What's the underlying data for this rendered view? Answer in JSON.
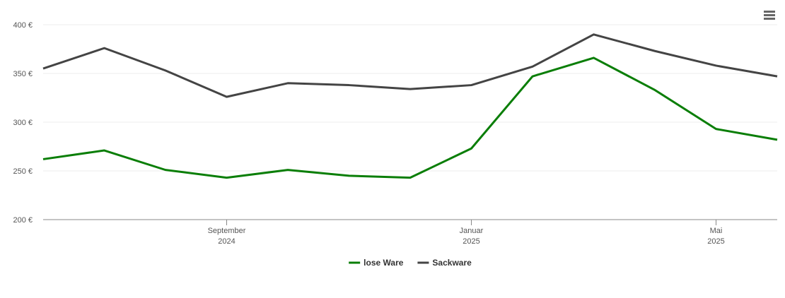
{
  "chart_data": {
    "type": "line",
    "x": [
      "2024-06",
      "2024-07",
      "2024-08",
      "2024-09",
      "2024-10",
      "2024-11",
      "2024-12",
      "2025-01",
      "2025-02",
      "2025-03",
      "2025-04",
      "2025-05",
      "2025-06"
    ],
    "series": [
      {
        "name": "lose Ware",
        "color": "#0a7e07",
        "values": [
          262,
          271,
          251,
          243,
          251,
          245,
          243,
          273,
          347,
          366,
          333,
          293,
          282
        ]
      },
      {
        "name": "Sackware",
        "color": "#444444",
        "values": [
          355,
          376,
          353,
          326,
          340,
          338,
          334,
          338,
          357,
          390,
          373,
          358,
          347
        ]
      }
    ],
    "xlim": [
      "2024-06",
      "2025-06"
    ],
    "xticks": [
      {
        "value": "2024-09",
        "label": "September 2024"
      },
      {
        "value": "2025-01",
        "label": "Januar 2025"
      },
      {
        "value": "2025-05",
        "label": "Mai 2025"
      }
    ],
    "ylim": [
      200,
      400
    ],
    "yticks": [
      {
        "value": 200,
        "label": "200 €"
      },
      {
        "value": 250,
        "label": "250 €"
      },
      {
        "value": 300,
        "label": "300 €"
      },
      {
        "value": 350,
        "label": "350 €"
      },
      {
        "value": 400,
        "label": "400 €"
      }
    ],
    "grid": true,
    "legend": "bottom"
  }
}
